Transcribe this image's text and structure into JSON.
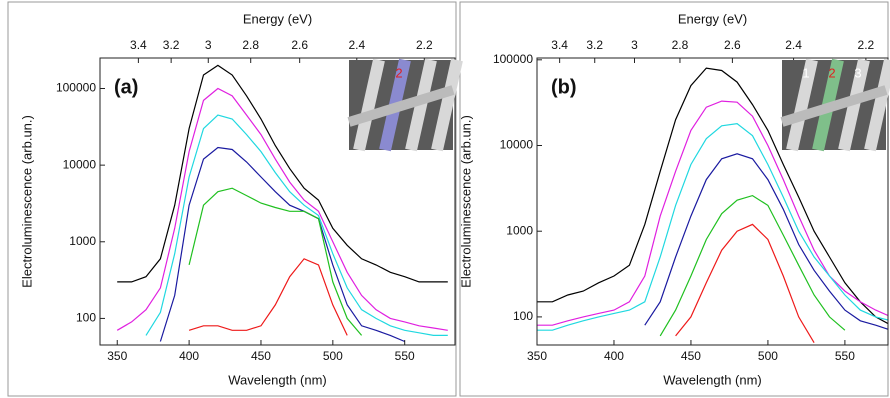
{
  "chart_data": [
    {
      "type": "line",
      "panel_label": "(a)",
      "xlabel": "Wavelength (nm)",
      "ylabel": "Electroluminescence (arb.un.)",
      "x2label": "Energy (eV)",
      "log_y": true,
      "xlim": [
        338,
        585
      ],
      "ylim": [
        45,
        250000
      ],
      "xticks": [
        350,
        400,
        450,
        500,
        550
      ],
      "yticks": [
        100,
        1000,
        10000,
        100000
      ],
      "x2ticks": [
        3.4,
        3.2,
        3,
        2.8,
        2.6,
        2.4,
        2.2
      ],
      "inset_labels": [
        "2"
      ],
      "x": [
        350,
        360,
        370,
        380,
        390,
        400,
        410,
        420,
        430,
        440,
        450,
        460,
        470,
        480,
        490,
        500,
        510,
        520,
        530,
        540,
        550,
        560,
        570,
        580
      ],
      "series": [
        {
          "color": "#000000",
          "values": [
            300,
            300,
            350,
            600,
            3000,
            30000,
            150000,
            200000,
            150000,
            80000,
            40000,
            18000,
            9000,
            5000,
            3500,
            1500,
            900,
            600,
            500,
            400,
            350,
            300,
            300,
            300
          ]
        },
        {
          "color": "#e020e0",
          "values": [
            70,
            90,
            130,
            250,
            1500,
            15000,
            70000,
            100000,
            80000,
            45000,
            25000,
            12000,
            6000,
            3500,
            2500,
            1000,
            400,
            200,
            130,
            100,
            90,
            80,
            75,
            70
          ]
        },
        {
          "color": "#20d8e0",
          "values": [
            null,
            null,
            60,
            120,
            700,
            7000,
            30000,
            45000,
            40000,
            25000,
            15000,
            8000,
            4500,
            3000,
            2200,
            700,
            250,
            130,
            100,
            80,
            70,
            65,
            60,
            60
          ]
        },
        {
          "color": "#1a1aa0",
          "values": [
            null,
            null,
            null,
            50,
            200,
            3000,
            12000,
            17000,
            16000,
            11000,
            7000,
            4500,
            3000,
            2500,
            2000,
            500,
            150,
            80,
            70,
            60,
            50,
            null,
            null,
            null
          ]
        },
        {
          "color": "#20c020",
          "values": [
            null,
            null,
            null,
            null,
            null,
            500,
            3000,
            4500,
            5000,
            4000,
            3200,
            2800,
            2500,
            2500,
            2000,
            300,
            100,
            60,
            null,
            null,
            null,
            null,
            null,
            null
          ]
        },
        {
          "color": "#ee1a1a",
          "values": [
            null,
            null,
            null,
            null,
            null,
            70,
            80,
            80,
            70,
            70,
            80,
            150,
            350,
            600,
            500,
            150,
            60,
            null,
            null,
            null,
            null,
            null,
            null,
            null
          ]
        }
      ]
    },
    {
      "type": "line",
      "panel_label": "(b)",
      "xlabel": "Wavelength (nm)",
      "ylabel": "Electroluminescence (arb.un.)",
      "x2label": "Energy (eV)",
      "log_y": true,
      "xlim": [
        350,
        578
      ],
      "ylim": [
        47,
        105000
      ],
      "xticks": [
        350,
        400,
        450,
        500,
        550
      ],
      "yticks": [
        100,
        1000,
        10000,
        100000
      ],
      "x2ticks": [
        3.4,
        3.2,
        3,
        2.8,
        2.6,
        2.4,
        2.2
      ],
      "inset_labels": [
        "1",
        "2",
        "3"
      ],
      "x": [
        350,
        360,
        370,
        380,
        390,
        400,
        410,
        420,
        430,
        440,
        450,
        460,
        470,
        480,
        490,
        500,
        510,
        520,
        530,
        540,
        550,
        560,
        570,
        580
      ],
      "series": [
        {
          "color": "#000000",
          "values": [
            150,
            150,
            180,
            200,
            250,
            300,
            400,
            1200,
            5000,
            20000,
            50000,
            80000,
            75000,
            55000,
            30000,
            15000,
            6000,
            2500,
            1000,
            500,
            250,
            150,
            100,
            80
          ]
        },
        {
          "color": "#e020e0",
          "values": [
            80,
            80,
            90,
            100,
            110,
            120,
            150,
            300,
            1500,
            5000,
            15000,
            28000,
            33000,
            32000,
            22000,
            10000,
            4000,
            1500,
            600,
            300,
            200,
            150,
            120,
            100
          ]
        },
        {
          "color": "#20d8e0",
          "values": [
            70,
            70,
            80,
            90,
            100,
            110,
            120,
            150,
            500,
            2000,
            6000,
            12000,
            17000,
            18000,
            13000,
            6000,
            2500,
            1000,
            500,
            300,
            180,
            120,
            100,
            90
          ]
        },
        {
          "color": "#1a1aa0",
          "values": [
            null,
            null,
            null,
            null,
            null,
            null,
            null,
            80,
            150,
            500,
            1500,
            4000,
            7000,
            8000,
            7000,
            4000,
            1800,
            700,
            350,
            200,
            120,
            90,
            80,
            70
          ]
        },
        {
          "color": "#20c020",
          "values": [
            null,
            null,
            null,
            null,
            null,
            null,
            null,
            null,
            60,
            120,
            300,
            800,
            1600,
            2300,
            2600,
            2000,
            900,
            400,
            180,
            100,
            70,
            null,
            null,
            null
          ]
        },
        {
          "color": "#ee1a1a",
          "values": [
            null,
            null,
            null,
            null,
            null,
            null,
            null,
            null,
            null,
            60,
            100,
            250,
            600,
            1000,
            1200,
            800,
            300,
            100,
            50,
            null,
            null,
            null,
            null,
            null
          ]
        }
      ]
    }
  ]
}
